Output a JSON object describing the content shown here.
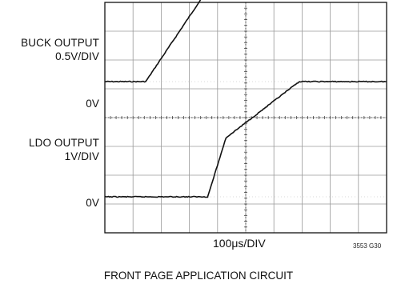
{
  "chart_data": {
    "type": "line",
    "title": "",
    "xlabel": "100μs/DIV",
    "x_divisions": 10,
    "y_divisions": 8,
    "labels_left": {
      "buck_title": "BUCK OUTPUT",
      "buck_scale": "0.5V/DIV",
      "buck_zero": "0V",
      "ldo_title": "LDO OUTPUT",
      "ldo_scale": "1V/DIV",
      "ldo_zero": "0V"
    },
    "figure_id": "3553 G30",
    "caption": "FRONT PAGE APPLICATION CIRCUIT",
    "series": [
      {
        "name": "BUCK OUTPUT",
        "x_div": [
          0,
          1.45,
          3.85,
          10
        ],
        "y_div": [
          -2.75,
          -2.75,
          0.75,
          0.75
        ]
      },
      {
        "name": "LDO OUTPUT",
        "x_div": [
          0,
          3.65,
          4.3,
          6.9,
          10
        ],
        "y_div": [
          -6.75,
          -6.75,
          -4.7,
          -2.75,
          -2.75
        ]
      }
    ],
    "y_axis": {
      "zero_grid_lines": [
        -2.75,
        -6.75
      ]
    },
    "colors": {
      "trace": "#111111",
      "grid": "#9a9a9a",
      "frame": "#111111"
    }
  }
}
